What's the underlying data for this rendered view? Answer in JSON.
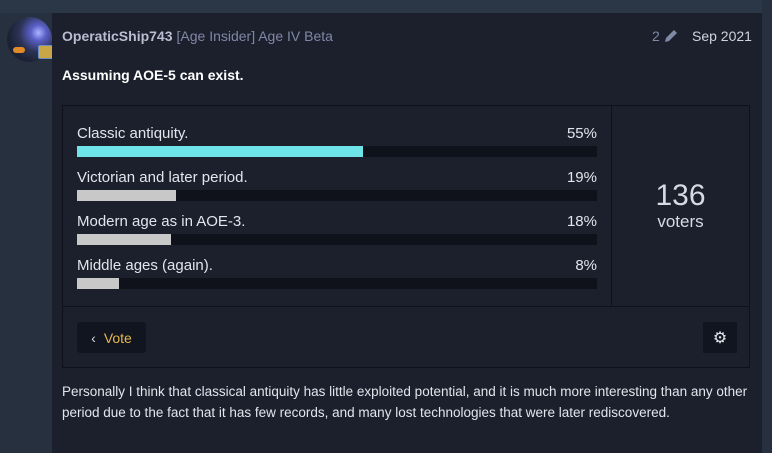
{
  "post": {
    "username": "OperaticShip743",
    "flair": "[Age Insider] Age IV Beta",
    "edit_count": "2",
    "date": "Sep 2021",
    "title": "Assuming AOE-5 can exist.",
    "body": "Personally I think that classical antiquity has little exploited potential, and it is much more interesting than any other period due to the fact that it has few records, and many lost technologies that were later rediscovered."
  },
  "poll": {
    "options": [
      {
        "label": "Classic antiquity.",
        "percent_label": "55%",
        "percent": 55,
        "color": "#6ee3e8"
      },
      {
        "label": "Victorian and later period.",
        "percent_label": "19%",
        "percent": 19,
        "color": "#c8c8c8"
      },
      {
        "label": "Modern age as in AOE-3.",
        "percent_label": "18%",
        "percent": 18,
        "color": "#c8c8c8"
      },
      {
        "label": "Middle ages (again).",
        "percent_label": "8%",
        "percent": 8,
        "color": "#c8c8c8"
      }
    ],
    "voters_count": "136",
    "voters_label": "voters",
    "vote_button": "Vote"
  },
  "icons": {
    "edit": "pencil-icon",
    "back": "chevron-left-icon",
    "settings": "gear-icon"
  }
}
